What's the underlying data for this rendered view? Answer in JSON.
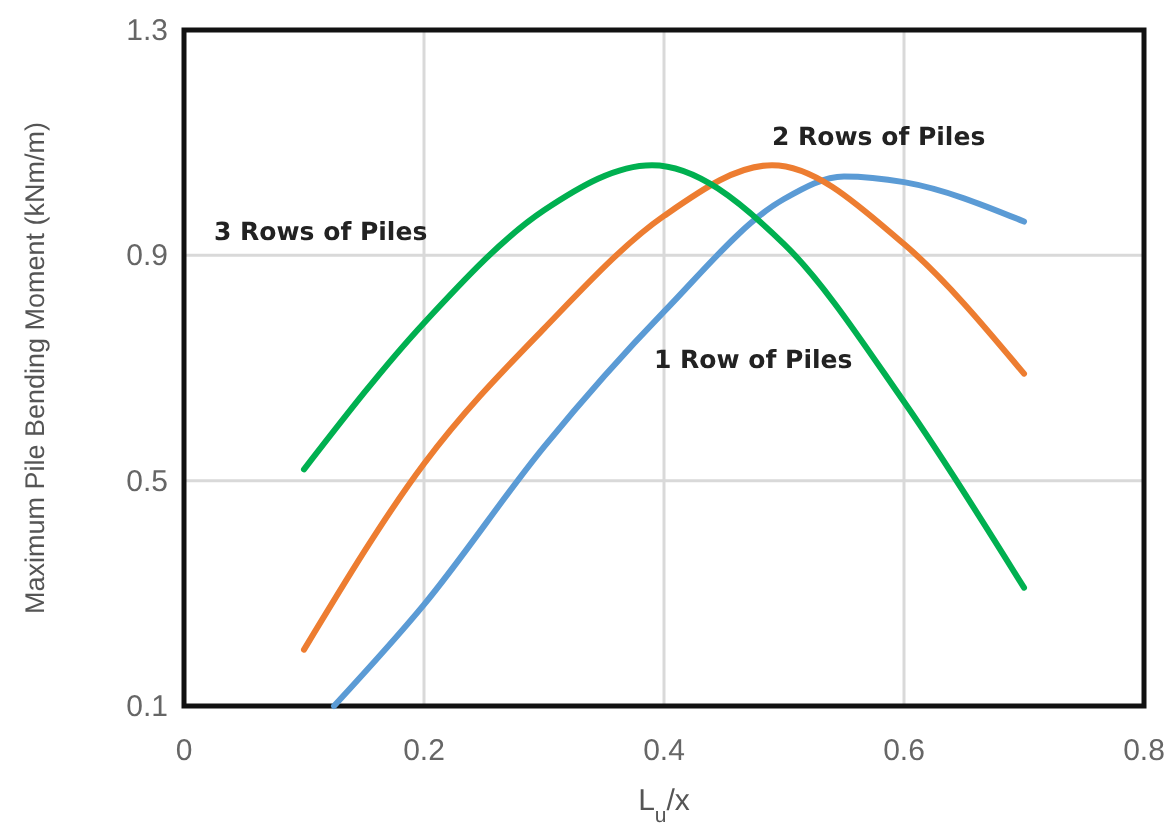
{
  "chart_data": {
    "type": "line",
    "xlabel": "L$_{u}$/x",
    "ylabel": "Maximum Pile Bending Moment (kNm/m)",
    "xlim": [
      0,
      0.8
    ],
    "ylim": [
      0.1,
      1.3
    ],
    "xticks": [
      0,
      0.2,
      0.4,
      0.6,
      0.8
    ],
    "yticks": [
      0.1,
      0.5,
      0.9,
      1.3
    ],
    "grid": true,
    "marker": "none",
    "line_style": "solid",
    "series": [
      {
        "name": "1 Row of Piles",
        "color": "#5b9bd5",
        "x": [
          0.125,
          0.2,
          0.3,
          0.4,
          0.5,
          0.55,
          0.6,
          0.7
        ],
        "values": [
          0.1,
          0.28,
          0.56,
          0.8,
          1.0,
          1.04,
          1.03,
          0.96
        ]
      },
      {
        "name": "2 Rows of Piles",
        "color": "#ed7d31",
        "x": [
          0.1,
          0.2,
          0.3,
          0.4,
          0.49,
          0.6,
          0.7
        ],
        "values": [
          0.2,
          0.53,
          0.77,
          0.97,
          1.06,
          0.92,
          0.69
        ]
      },
      {
        "name": "3 Rows of Piles",
        "color": "#00b050",
        "x": [
          0.1,
          0.2,
          0.3,
          0.39,
          0.5,
          0.6,
          0.7
        ],
        "values": [
          0.52,
          0.78,
          0.98,
          1.06,
          0.92,
          0.64,
          0.31
        ]
      }
    ]
  }
}
